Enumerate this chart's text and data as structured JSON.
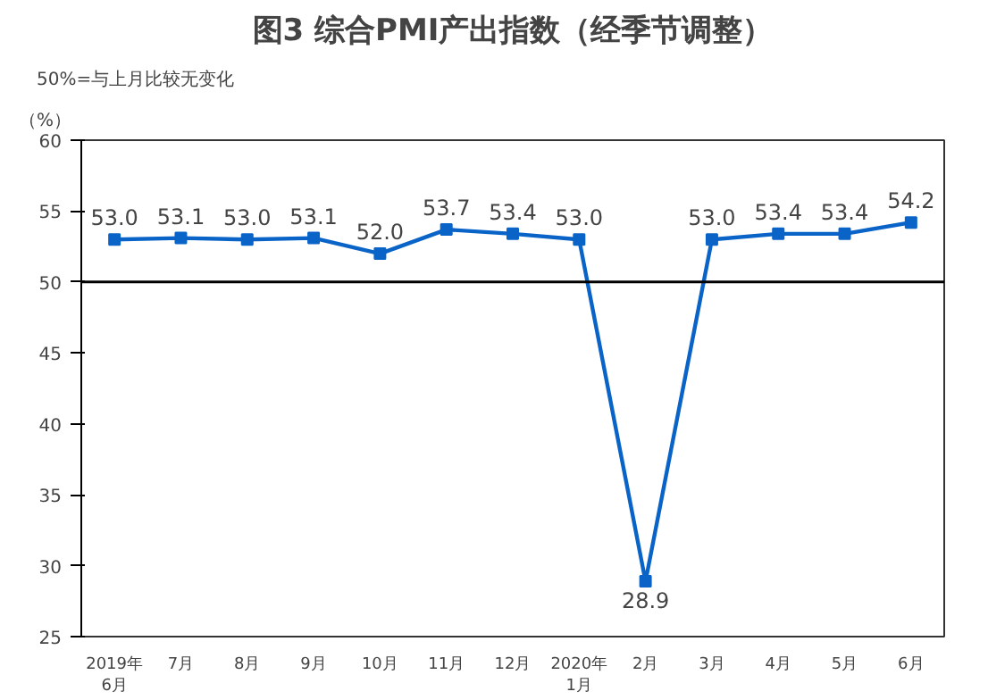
{
  "chart_data": {
    "type": "line",
    "title": "图3 综合PMI产出指数（经季节调整）",
    "ylabel": "（%）",
    "annotations": [
      "50%=与上月比较无变化"
    ],
    "categories": [
      "2019年\n6月",
      "7月",
      "8月",
      "9月",
      "10月",
      "11月",
      "12月",
      "2020年\n1月",
      "2月",
      "3月",
      "4月",
      "5月",
      "6月"
    ],
    "series": [
      {
        "color": "#0a64c8",
        "values": [
          53.0,
          53.1,
          53.0,
          53.1,
          52.0,
          53.7,
          53.4,
          53.0,
          28.9,
          53.0,
          53.4,
          53.4,
          54.2
        ],
        "value_labels": [
          "53.0",
          "53.1",
          "53.0",
          "53.1",
          "52.0",
          "53.7",
          "53.4",
          "53.0",
          "28.9",
          "53.0",
          "53.4",
          "53.4",
          "54.2"
        ]
      }
    ],
    "ylim": [
      25,
      60
    ],
    "yticks": [
      25,
      30,
      35,
      40,
      45,
      50,
      55,
      60
    ],
    "ref_lines": [
      {
        "axis": "y",
        "value": 50,
        "color": "#000000"
      }
    ],
    "marker": "square",
    "grid": false
  }
}
